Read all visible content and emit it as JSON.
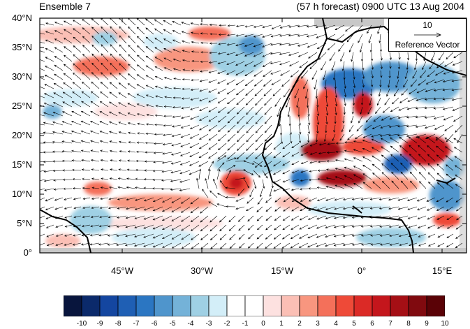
{
  "header": {
    "left_title": "Ensemble 7",
    "right_title": "(57 h forecast) 0900 UTC 13 Aug 2004"
  },
  "axes": {
    "y_ticks": [
      "40°N",
      "35°N",
      "30°N",
      "25°N",
      "20°N",
      "15°N",
      "10°N",
      "5°N",
      "0°"
    ],
    "x_ticks": [
      "45°W",
      "30°W",
      "15°W",
      "0°",
      "15°E"
    ]
  },
  "reference_vector": {
    "value": "10",
    "label": "Reference Vector"
  },
  "colorbar": {
    "labels": [
      "-10",
      "-9",
      "-8",
      "-7",
      "-6",
      "-5",
      "-4",
      "-3",
      "-2",
      "-1",
      "0",
      "1",
      "2",
      "3",
      "4",
      "5",
      "6",
      "7",
      "8",
      "9",
      "10"
    ],
    "colors": [
      "#08153d",
      "#0b2a6b",
      "#1446a0",
      "#1f5fb4",
      "#2b76c2",
      "#4f95cc",
      "#74b2d8",
      "#9fd0e4",
      "#d3eef8",
      "#ffffff",
      "#ffffff",
      "#fde1e0",
      "#fbbfb5",
      "#f8967f",
      "#f4705a",
      "#ee4a38",
      "#db2a26",
      "#c4161c",
      "#a50f15",
      "#800a0f",
      "#5a0206"
    ]
  }
}
